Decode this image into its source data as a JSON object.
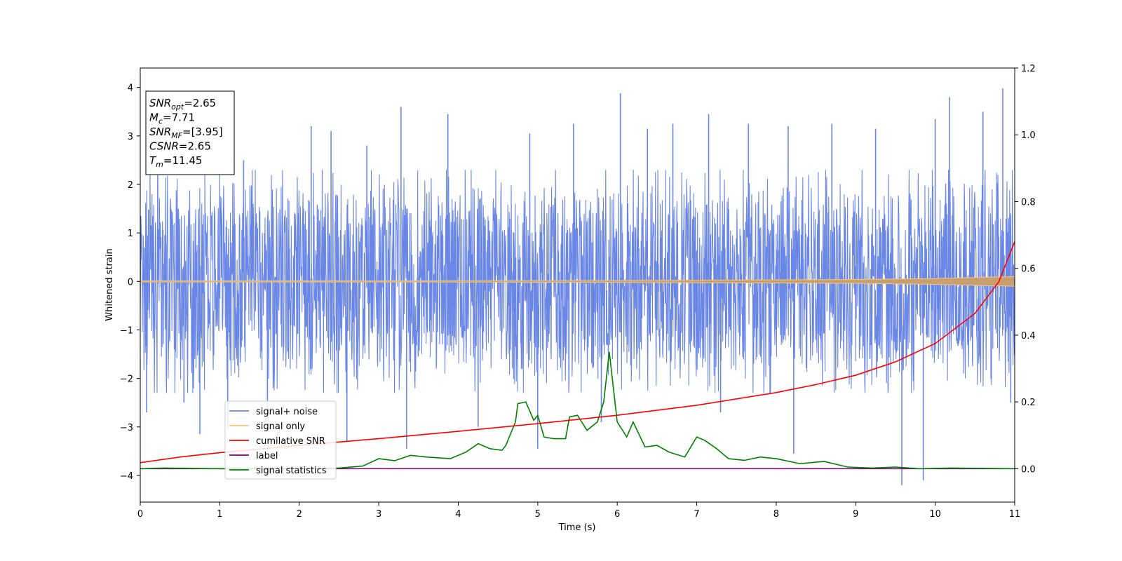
{
  "chart_data": {
    "type": "line",
    "xlabel": "Time (s)",
    "ylabel": "Whitened strain",
    "xlim": [
      0,
      11
    ],
    "ylim_left": [
      -4.55,
      4.4
    ],
    "ylim_right": [
      -0.1,
      1.2
    ],
    "x_ticks": [
      0,
      1,
      2,
      3,
      4,
      5,
      6,
      7,
      8,
      9,
      10,
      11
    ],
    "y_ticks_left": [
      -4,
      -3,
      -2,
      -1,
      0,
      1,
      2,
      3,
      4
    ],
    "y_ticks_right": [
      0.0,
      0.2,
      0.4,
      0.6,
      0.8,
      1.0,
      1.2
    ],
    "grid": false,
    "legend_position": "lower-left",
    "colors": {
      "signal_noise": "#6b87e6",
      "signal_only": "#f5c77a",
      "signal_only_band": "#c8a070",
      "cumulative_snr": "#ff0000",
      "label": "#800080",
      "signal_statistics": "#008000"
    },
    "annotation_box": {
      "lines": [
        {
          "base": "SNR",
          "sub": "opt",
          "value": "=2.65"
        },
        {
          "base": "M",
          "sub": "c",
          "value": "=7.71"
        },
        {
          "base": "SNR",
          "sub": "MF",
          "value": "=[3.95]"
        },
        {
          "base": "CSNR",
          "sub": "",
          "value": "=2.65"
        },
        {
          "base": "T",
          "sub": "m",
          "value": "=11.45"
        }
      ]
    },
    "series": [
      {
        "name": "signal+ noise",
        "axis": "left",
        "note": "whitened noise band approx. between -2.3 and +2.3 with spikes",
        "envelope": {
          "low": -2.3,
          "high": 2.3
        },
        "spikes": [
          {
            "x": 0.08,
            "y": -2.7
          },
          {
            "x": 0.22,
            "y": 2.5
          },
          {
            "x": 0.55,
            "y": -2.5
          },
          {
            "x": 0.75,
            "y": -3.15
          },
          {
            "x": 1.1,
            "y": -3.05
          },
          {
            "x": 1.3,
            "y": 2.5
          },
          {
            "x": 1.6,
            "y": -2.9
          },
          {
            "x": 2.15,
            "y": 3.2
          },
          {
            "x": 2.4,
            "y": 3.1
          },
          {
            "x": 2.6,
            "y": -3.3
          },
          {
            "x": 2.85,
            "y": 2.8
          },
          {
            "x": 3.28,
            "y": 3.6
          },
          {
            "x": 3.35,
            "y": -3.45
          },
          {
            "x": 3.87,
            "y": 3.45
          },
          {
            "x": 4.25,
            "y": -3.0
          },
          {
            "x": 4.9,
            "y": 3.05
          },
          {
            "x": 5.0,
            "y": -3.45
          },
          {
            "x": 5.45,
            "y": 3.25
          },
          {
            "x": 5.8,
            "y": -2.9
          },
          {
            "x": 6.04,
            "y": 3.88
          },
          {
            "x": 6.38,
            "y": 3.15
          },
          {
            "x": 6.7,
            "y": 3.25
          },
          {
            "x": 7.15,
            "y": 3.45
          },
          {
            "x": 7.3,
            "y": -2.7
          },
          {
            "x": 7.65,
            "y": 3.25
          },
          {
            "x": 8.15,
            "y": 3.2
          },
          {
            "x": 8.22,
            "y": -3.55
          },
          {
            "x": 8.7,
            "y": 3.25
          },
          {
            "x": 9.25,
            "y": 3.15
          },
          {
            "x": 9.58,
            "y": -4.2
          },
          {
            "x": 9.85,
            "y": -4.1
          },
          {
            "x": 10.0,
            "y": 3.35
          },
          {
            "x": 10.18,
            "y": 3.8
          },
          {
            "x": 10.6,
            "y": 3.5
          },
          {
            "x": 10.85,
            "y": 3.98
          },
          {
            "x": 10.95,
            "y": -2.5
          }
        ]
      },
      {
        "name": "signal only",
        "axis": "left",
        "note": "chirp near zero, amplitude grows toward end",
        "points": [
          [
            0,
            0.0
          ],
          [
            6,
            0.02
          ],
          [
            9,
            0.04
          ],
          [
            10,
            0.06
          ],
          [
            11,
            0.1
          ]
        ]
      },
      {
        "name": "cumilative SNR",
        "axis": "right",
        "points": [
          [
            0,
            0.018
          ],
          [
            0.5,
            0.035
          ],
          [
            1,
            0.048
          ],
          [
            2,
            0.07
          ],
          [
            3,
            0.09
          ],
          [
            4,
            0.112
          ],
          [
            5,
            0.135
          ],
          [
            6,
            0.16
          ],
          [
            7,
            0.19
          ],
          [
            8,
            0.228
          ],
          [
            8.5,
            0.252
          ],
          [
            9,
            0.28
          ],
          [
            9.5,
            0.32
          ],
          [
            10,
            0.375
          ],
          [
            10.5,
            0.465
          ],
          [
            10.8,
            0.56
          ],
          [
            11,
            0.68
          ]
        ]
      },
      {
        "name": "label",
        "axis": "right",
        "points": [
          [
            0,
            0.0
          ],
          [
            11,
            0.0
          ]
        ]
      },
      {
        "name": "signal statistics",
        "axis": "right",
        "points": [
          [
            0,
            0.0
          ],
          [
            0.3,
            0.002
          ],
          [
            1,
            0.0
          ],
          [
            2,
            0.001
          ],
          [
            2.5,
            0.002
          ],
          [
            2.8,
            0.008
          ],
          [
            3.0,
            0.03
          ],
          [
            3.2,
            0.024
          ],
          [
            3.4,
            0.04
          ],
          [
            3.6,
            0.035
          ],
          [
            3.9,
            0.03
          ],
          [
            4.1,
            0.05
          ],
          [
            4.25,
            0.075
          ],
          [
            4.4,
            0.06
          ],
          [
            4.55,
            0.055
          ],
          [
            4.6,
            0.07
          ],
          [
            4.65,
            0.1
          ],
          [
            4.72,
            0.14
          ],
          [
            4.75,
            0.195
          ],
          [
            4.85,
            0.2
          ],
          [
            4.95,
            0.145
          ],
          [
            5.0,
            0.16
          ],
          [
            5.08,
            0.095
          ],
          [
            5.2,
            0.09
          ],
          [
            5.35,
            0.09
          ],
          [
            5.4,
            0.155
          ],
          [
            5.5,
            0.16
          ],
          [
            5.62,
            0.115
          ],
          [
            5.75,
            0.14
          ],
          [
            5.83,
            0.2
          ],
          [
            5.9,
            0.35
          ],
          [
            6.0,
            0.14
          ],
          [
            6.12,
            0.095
          ],
          [
            6.2,
            0.14
          ],
          [
            6.35,
            0.065
          ],
          [
            6.5,
            0.07
          ],
          [
            6.65,
            0.05
          ],
          [
            6.85,
            0.035
          ],
          [
            7.0,
            0.095
          ],
          [
            7.1,
            0.085
          ],
          [
            7.25,
            0.06
          ],
          [
            7.4,
            0.03
          ],
          [
            7.6,
            0.025
          ],
          [
            7.8,
            0.035
          ],
          [
            8.0,
            0.03
          ],
          [
            8.3,
            0.015
          ],
          [
            8.6,
            0.022
          ],
          [
            8.9,
            0.005
          ],
          [
            9.2,
            0.002
          ],
          [
            9.5,
            0.005
          ],
          [
            9.8,
            0.0
          ],
          [
            10.2,
            0.002
          ],
          [
            11,
            0.0
          ]
        ]
      }
    ]
  }
}
